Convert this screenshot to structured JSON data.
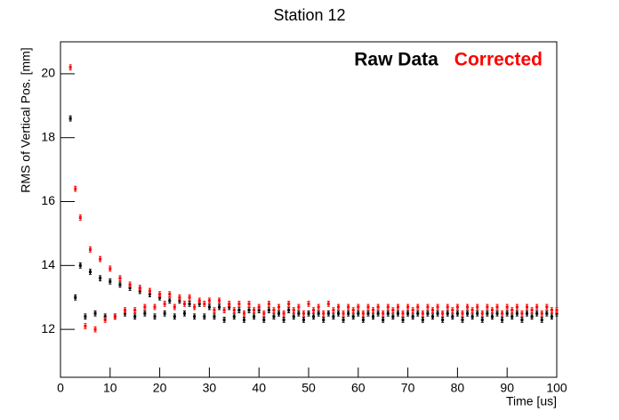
{
  "chart_data": {
    "type": "scatter",
    "title": "Station 12",
    "x_label": "Time [us]",
    "y_label": "RMS of Vertical Pos. [mm]",
    "x": [
      2,
      3,
      4,
      5,
      6,
      7,
      8,
      9,
      10,
      11,
      12,
      13,
      14,
      15,
      16,
      17,
      18,
      19,
      20,
      21,
      22,
      23,
      24,
      25,
      26,
      27,
      28,
      29,
      30,
      31,
      32,
      33,
      34,
      35,
      36,
      37,
      38,
      39,
      40,
      41,
      42,
      43,
      44,
      45,
      46,
      47,
      48,
      49,
      50,
      51,
      52,
      53,
      54,
      55,
      56,
      57,
      58,
      59,
      60,
      61,
      62,
      63,
      64,
      65,
      66,
      67,
      68,
      69,
      70,
      71,
      72,
      73,
      74,
      75,
      76,
      77,
      78,
      79,
      80,
      81,
      82,
      83,
      84,
      85,
      86,
      87,
      88,
      89,
      90,
      91,
      92,
      93,
      94,
      95,
      96,
      97,
      98,
      99,
      100
    ],
    "series": [
      {
        "name": "Raw Data",
        "color": "#000000",
        "error": 0.08,
        "values": [
          18.6,
          13.0,
          14.0,
          12.4,
          13.8,
          12.5,
          13.6,
          12.4,
          13.5,
          12.4,
          13.4,
          12.5,
          13.3,
          12.4,
          13.2,
          12.5,
          13.1,
          12.4,
          13.0,
          12.5,
          12.9,
          12.4,
          12.9,
          12.5,
          12.8,
          12.4,
          12.8,
          12.4,
          12.7,
          12.4,
          12.7,
          12.3,
          12.7,
          12.4,
          12.6,
          12.3,
          12.6,
          12.4,
          12.6,
          12.3,
          12.6,
          12.4,
          12.5,
          12.3,
          12.6,
          12.4,
          12.5,
          12.3,
          12.5,
          12.4,
          12.5,
          12.3,
          12.5,
          12.4,
          12.5,
          12.3,
          12.5,
          12.4,
          12.5,
          12.3,
          12.5,
          12.4,
          12.5,
          12.3,
          12.5,
          12.4,
          12.5,
          12.3,
          12.5,
          12.4,
          12.5,
          12.3,
          12.5,
          12.4,
          12.5,
          12.3,
          12.5,
          12.4,
          12.5,
          12.3,
          12.5,
          12.4,
          12.5,
          12.3,
          12.5,
          12.4,
          12.5,
          12.3,
          12.5,
          12.4,
          12.5,
          12.3,
          12.5,
          12.4,
          12.5,
          12.3,
          12.5,
          12.4,
          12.5
        ]
      },
      {
        "name": "Corrected",
        "color": "#ff0000",
        "error": 0.08,
        "values": [
          20.2,
          16.4,
          15.5,
          12.1,
          14.5,
          12.0,
          14.2,
          12.3,
          13.9,
          12.4,
          13.6,
          12.6,
          13.4,
          12.6,
          13.3,
          12.7,
          13.2,
          12.7,
          13.1,
          12.8,
          13.1,
          12.7,
          13.0,
          12.8,
          13.0,
          12.7,
          12.9,
          12.8,
          12.9,
          12.6,
          12.9,
          12.6,
          12.8,
          12.6,
          12.8,
          12.5,
          12.8,
          12.6,
          12.7,
          12.5,
          12.8,
          12.6,
          12.7,
          12.5,
          12.8,
          12.6,
          12.7,
          12.5,
          12.8,
          12.6,
          12.7,
          12.5,
          12.8,
          12.6,
          12.7,
          12.5,
          12.7,
          12.6,
          12.7,
          12.5,
          12.7,
          12.6,
          12.7,
          12.5,
          12.7,
          12.6,
          12.7,
          12.5,
          12.7,
          12.6,
          12.7,
          12.5,
          12.7,
          12.6,
          12.7,
          12.5,
          12.7,
          12.6,
          12.7,
          12.5,
          12.7,
          12.6,
          12.7,
          12.5,
          12.7,
          12.6,
          12.7,
          12.5,
          12.7,
          12.6,
          12.7,
          12.5,
          12.7,
          12.6,
          12.7,
          12.5,
          12.7,
          12.6,
          12.6
        ]
      }
    ],
    "xlim": [
      0,
      100
    ],
    "xticks": [
      0,
      10,
      20,
      30,
      40,
      50,
      60,
      70,
      80,
      90,
      100
    ],
    "ylim": [
      10.5,
      21
    ],
    "yticks": [
      12,
      14,
      16,
      18,
      20
    ],
    "legend": "top-right"
  }
}
